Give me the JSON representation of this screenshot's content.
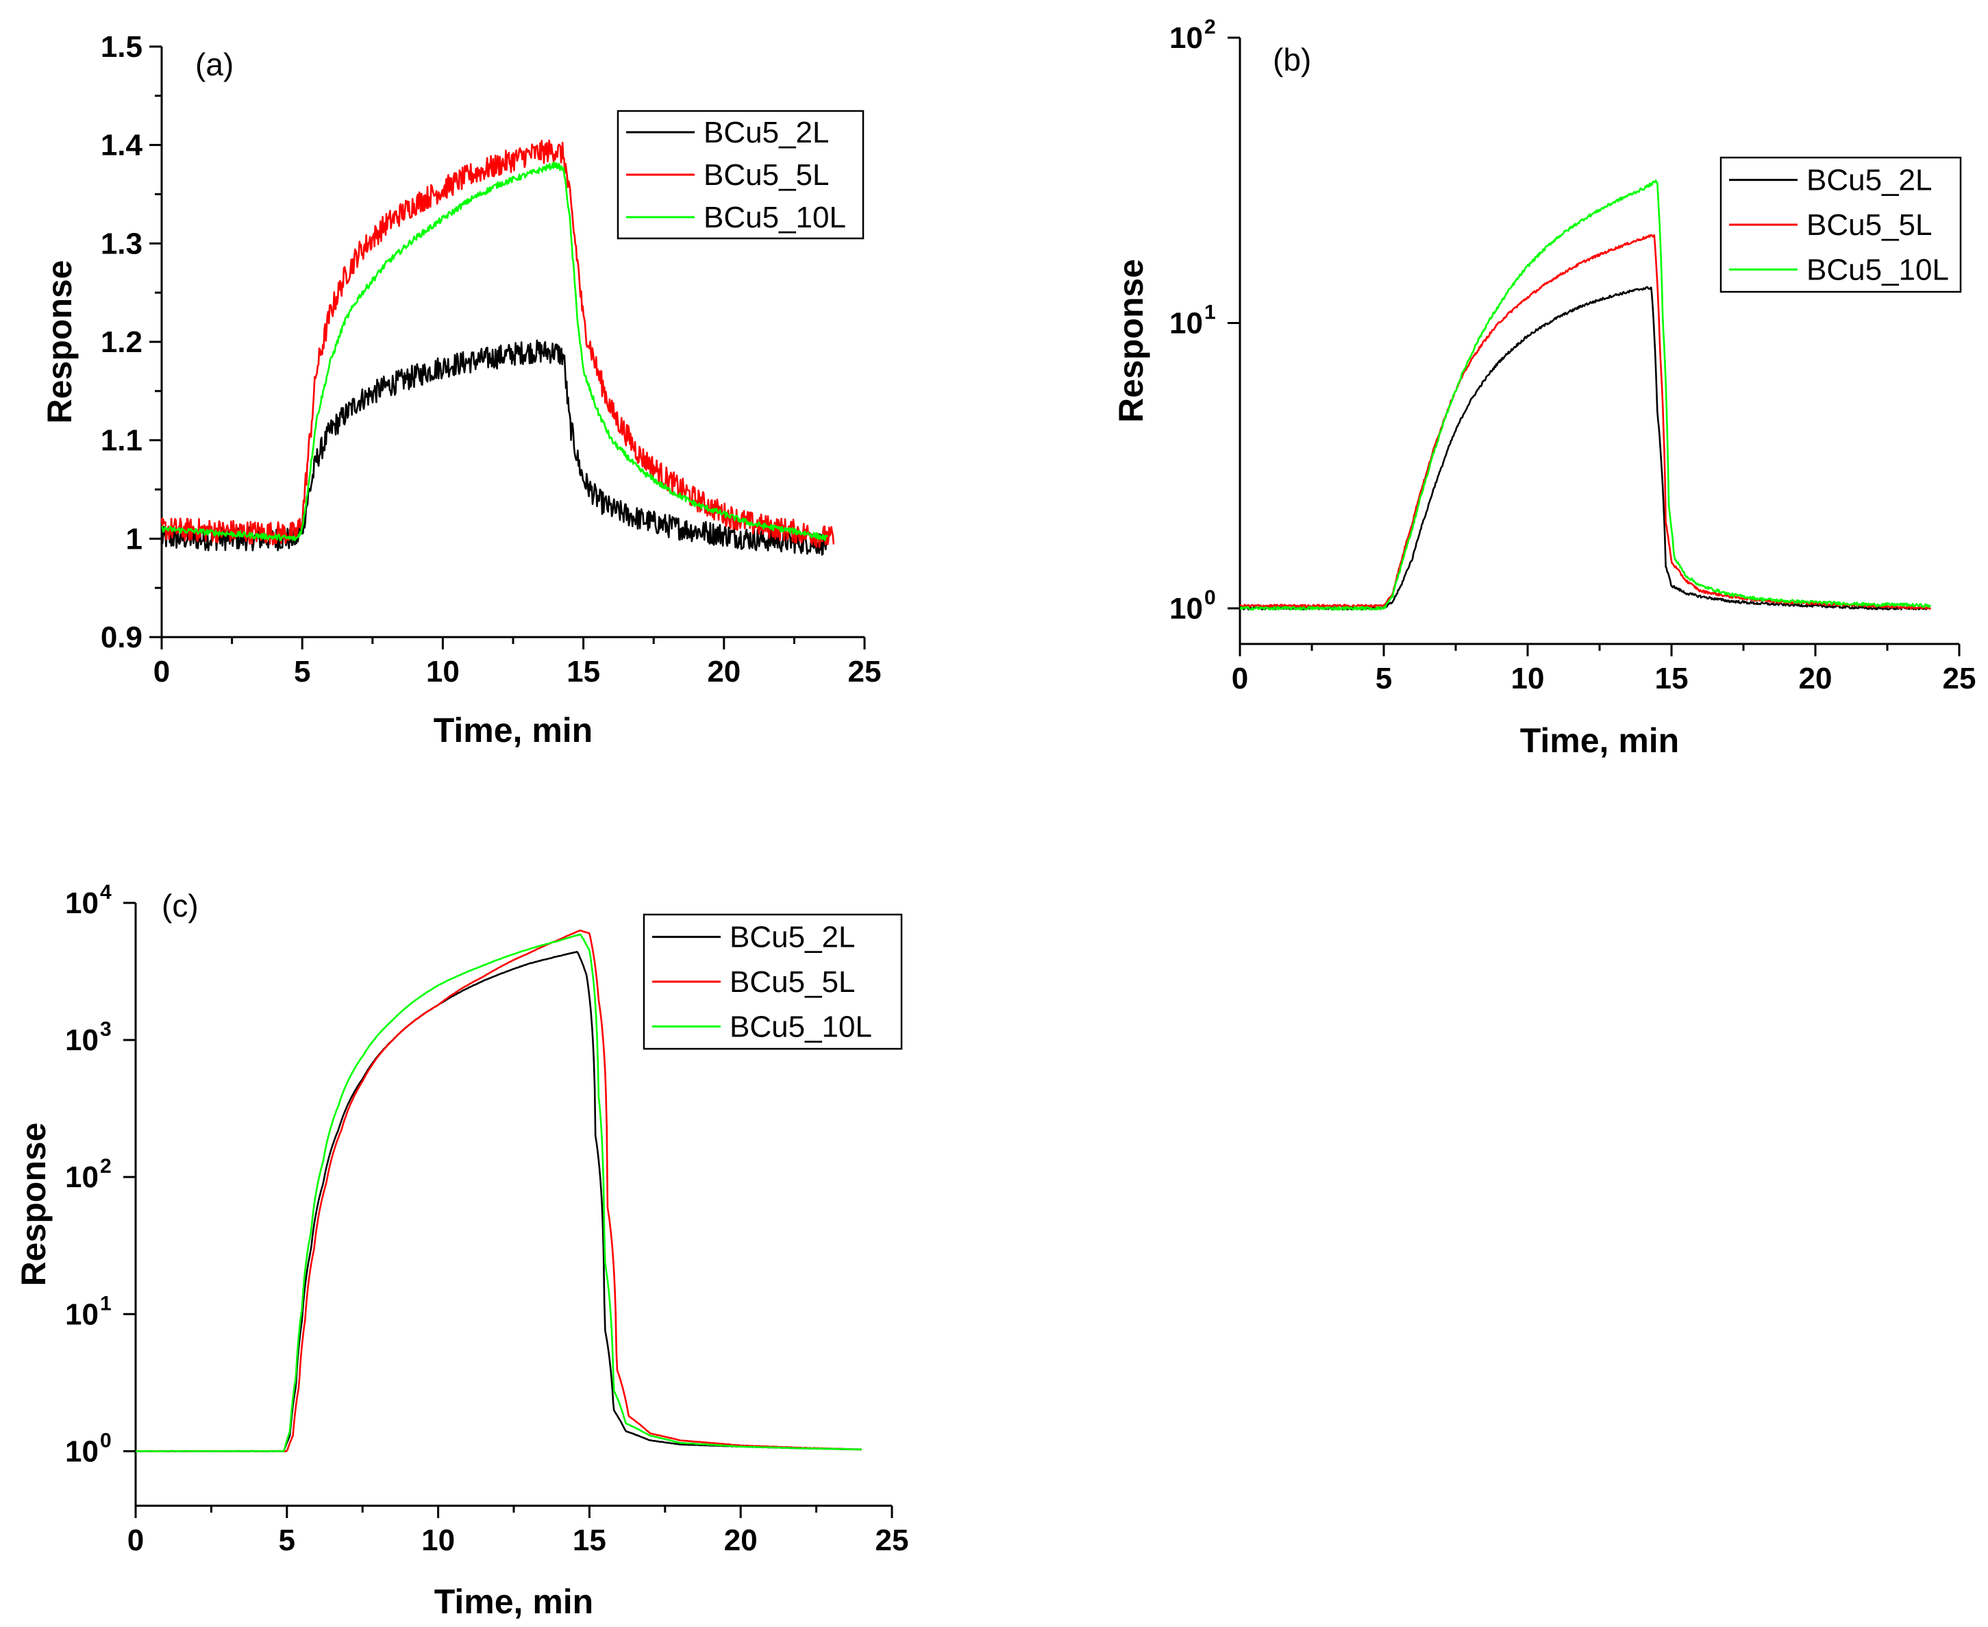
{
  "chart_data": [
    {
      "type": "line",
      "panel_label": "(a)",
      "xlabel": "Time, min",
      "ylabel": "Response",
      "xlim": [
        0,
        25
      ],
      "ylim": [
        0.9,
        1.5
      ],
      "yscale": "linear",
      "xticks": [
        0,
        5,
        10,
        15,
        20,
        25
      ],
      "yticks": [
        0.9,
        1.0,
        1.1,
        1.2,
        1.3,
        1.4,
        1.5
      ],
      "ytick_labels": [
        "0.9",
        "1",
        "1.1",
        "1.2",
        "1.3",
        "1.4",
        "1.5"
      ],
      "grid": false,
      "legend_position": "top-right",
      "series": [
        {
          "name": "BCu5_2L",
          "color": "#000000",
          "noise": 0.012,
          "x": [
            0,
            4.8,
            5.0,
            5.2,
            5.5,
            6,
            6.5,
            7,
            8,
            9,
            10,
            11,
            12,
            13,
            14,
            14.3,
            14.5,
            14.8,
            15,
            15.5,
            16,
            17,
            18,
            19,
            20,
            21,
            22,
            23,
            23.7
          ],
          "y": [
            1.0,
            1.0,
            1.01,
            1.04,
            1.08,
            1.11,
            1.125,
            1.14,
            1.155,
            1.165,
            1.175,
            1.18,
            1.185,
            1.19,
            1.19,
            1.185,
            1.12,
            1.08,
            1.06,
            1.04,
            1.03,
            1.02,
            1.013,
            1.008,
            1.004,
            1.0,
            0.998,
            0.996,
            0.995
          ]
        },
        {
          "name": "BCu5_5L",
          "color": "#ff0000",
          "noise": 0.012,
          "x": [
            0,
            4.8,
            5.0,
            5.2,
            5.5,
            6,
            6.5,
            7,
            8,
            9,
            10,
            11,
            12,
            13,
            14,
            14.3,
            14.5,
            14.8,
            15,
            15.5,
            16,
            17,
            18,
            19,
            20,
            21,
            22,
            23,
            23.9
          ],
          "y": [
            1.01,
            1.005,
            1.02,
            1.08,
            1.17,
            1.23,
            1.265,
            1.29,
            1.32,
            1.34,
            1.355,
            1.37,
            1.38,
            1.39,
            1.395,
            1.39,
            1.35,
            1.28,
            1.22,
            1.17,
            1.13,
            1.085,
            1.06,
            1.04,
            1.025,
            1.015,
            1.01,
            1.005,
            1.0
          ]
        },
        {
          "name": "BCu5_10L",
          "color": "#00ff00",
          "noise": 0.003,
          "x": [
            0,
            4.8,
            5.0,
            5.2,
            5.5,
            6,
            6.5,
            7,
            8,
            9,
            10,
            11,
            12,
            13,
            14,
            14.3,
            14.5,
            14.8,
            15,
            15.5,
            16,
            17,
            18,
            19,
            20,
            21,
            22,
            23,
            23.7
          ],
          "y": [
            1.01,
            1.0,
            1.01,
            1.05,
            1.12,
            1.18,
            1.22,
            1.245,
            1.28,
            1.305,
            1.325,
            1.345,
            1.36,
            1.37,
            1.38,
            1.375,
            1.33,
            1.22,
            1.17,
            1.13,
            1.1,
            1.07,
            1.05,
            1.035,
            1.025,
            1.015,
            1.01,
            1.005,
            1.0
          ]
        }
      ]
    },
    {
      "type": "line",
      "panel_label": "(b)",
      "xlabel": "Time, min",
      "ylabel": "Response",
      "xlim": [
        0,
        25
      ],
      "ylim": [
        0.75,
        100
      ],
      "yscale": "log",
      "xticks": [
        0,
        5,
        10,
        15,
        20,
        25
      ],
      "ytick_labels": [
        {
          "value": 1,
          "base": "10",
          "exp": "0"
        },
        {
          "value": 10,
          "base": "10",
          "exp": "1"
        },
        {
          "value": 100,
          "base": "10",
          "exp": "2"
        }
      ],
      "grid": false,
      "legend_position": "top-right",
      "series": [
        {
          "name": "BCu5_2L",
          "color": "#000000",
          "noise": 0.01,
          "x": [
            0,
            5.0,
            5.3,
            5.6,
            6,
            6.5,
            7,
            7.5,
            8,
            9,
            10,
            11,
            12,
            13,
            14,
            14.3,
            14.5,
            14.8,
            15,
            15.5,
            16,
            17,
            18,
            19,
            20,
            21,
            22,
            23,
            24
          ],
          "y": [
            1.0,
            1.0,
            1.05,
            1.2,
            1.5,
            2.2,
            3.1,
            4.2,
            5.3,
            7.3,
            9.0,
            10.4,
            11.6,
            12.5,
            13.2,
            13.3,
            5.0,
            1.4,
            1.2,
            1.13,
            1.1,
            1.06,
            1.04,
            1.03,
            1.02,
            1.01,
            1.0,
            1.0,
            1.0
          ]
        },
        {
          "name": "BCu5_5L",
          "color": "#ff0000",
          "noise": 0.01,
          "x": [
            0,
            5.0,
            5.3,
            5.6,
            6,
            6.5,
            7,
            7.5,
            8,
            9,
            10,
            11,
            12,
            13,
            14,
            14.4,
            14.6,
            14.8,
            15,
            15.5,
            16,
            17,
            18,
            19,
            20,
            21,
            22,
            23,
            24
          ],
          "y": [
            1.02,
            1.02,
            1.12,
            1.45,
            2.0,
            3.0,
            4.3,
            5.8,
            7.3,
            10.0,
            12.3,
            14.5,
            16.5,
            18.2,
            19.8,
            20.3,
            8.0,
            2.0,
            1.45,
            1.25,
            1.15,
            1.1,
            1.07,
            1.05,
            1.04,
            1.03,
            1.02,
            1.01,
            1.0
          ]
        },
        {
          "name": "BCu5_10L",
          "color": "#00ff00",
          "noise": 0.012,
          "x": [
            0,
            5.0,
            5.3,
            5.6,
            6,
            6.5,
            7,
            7.5,
            8,
            9,
            10,
            11,
            12,
            13,
            14,
            14.5,
            14.7,
            14.9,
            15.1,
            15.5,
            16,
            17,
            18,
            19,
            20,
            21,
            22,
            23,
            24
          ],
          "y": [
            1.0,
            1.0,
            1.1,
            1.4,
            1.9,
            2.9,
            4.2,
            5.8,
            7.6,
            11.5,
            15.8,
            19.8,
            23.3,
            26.5,
            29.5,
            31.5,
            10.0,
            2.3,
            1.5,
            1.3,
            1.2,
            1.12,
            1.08,
            1.06,
            1.05,
            1.04,
            1.03,
            1.03,
            1.02
          ]
        }
      ]
    },
    {
      "type": "line",
      "panel_label": "(c)",
      "xlabel": "Time, min",
      "ylabel": "Response",
      "xlim": [
        0,
        25
      ],
      "ylim": [
        0.4,
        10000
      ],
      "yscale": "log",
      "xticks": [
        0,
        5,
        10,
        15,
        20,
        25
      ],
      "ytick_labels": [
        {
          "value": 1,
          "base": "10",
          "exp": "0"
        },
        {
          "value": 10,
          "base": "10",
          "exp": "1"
        },
        {
          "value": 100,
          "base": "10",
          "exp": "2"
        },
        {
          "value": 1000,
          "base": "10",
          "exp": "3"
        },
        {
          "value": 10000,
          "base": "10",
          "exp": "4"
        }
      ],
      "grid": false,
      "legend_position": "top-right",
      "series": [
        {
          "name": "BCu5_2L",
          "color": "#000000",
          "noise": 0.003,
          "x": [
            0,
            4.9,
            5.1,
            5.3,
            5.5,
            5.8,
            6.2,
            6.7,
            7.5,
            8.5,
            10,
            11.5,
            13,
            14,
            14.6,
            14.9,
            15.2,
            15.5,
            15.8,
            16.2,
            17,
            18,
            20,
            22,
            24
          ],
          "y": [
            1.0,
            1.0,
            1.3,
            3.0,
            9.0,
            30,
            90,
            220,
            520,
            1000,
            1800,
            2700,
            3600,
            4100,
            4400,
            3000,
            200,
            8,
            2.0,
            1.4,
            1.2,
            1.12,
            1.08,
            1.05,
            1.03
          ]
        },
        {
          "name": "BCu5_5L",
          "color": "#ff0000",
          "noise": 0.003,
          "x": [
            0,
            5.0,
            5.2,
            5.4,
            5.6,
            5.9,
            6.3,
            6.8,
            7.5,
            8.5,
            10,
            11.5,
            13,
            14,
            14.7,
            15.0,
            15.3,
            15.6,
            15.9,
            16.3,
            17,
            18,
            20,
            22,
            24
          ],
          "y": [
            1.0,
            1.0,
            1.3,
            3.0,
            9.0,
            30,
            90,
            220,
            500,
            1000,
            1800,
            2900,
            4300,
            5400,
            6300,
            6000,
            2000,
            60,
            4.0,
            1.8,
            1.35,
            1.2,
            1.1,
            1.06,
            1.03
          ]
        },
        {
          "name": "BCu5_10L",
          "color": "#00ff00",
          "noise": 0.003,
          "x": [
            0,
            4.9,
            5.1,
            5.3,
            5.5,
            5.8,
            6.2,
            6.7,
            7.5,
            8.5,
            10,
            11.5,
            13,
            14,
            14.7,
            15.0,
            15.3,
            15.5,
            15.8,
            16.2,
            17,
            18,
            20,
            22,
            24
          ],
          "y": [
            1.0,
            1.0,
            1.4,
            3.5,
            11,
            40,
            130,
            330,
            760,
            1400,
            2500,
            3500,
            4600,
            5300,
            5900,
            4500,
            400,
            25,
            2.8,
            1.6,
            1.3,
            1.15,
            1.08,
            1.05,
            1.03
          ]
        }
      ]
    }
  ]
}
